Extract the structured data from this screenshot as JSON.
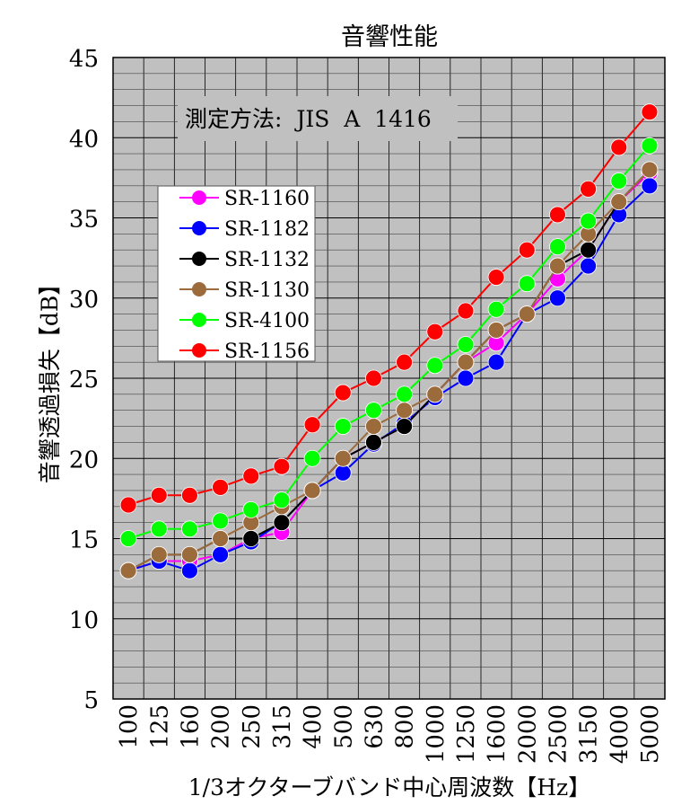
{
  "chart_data": {
    "type": "line",
    "title": "音響性能",
    "xlabel": "1/3オクターブバンド中心周波数【Hz】",
    "ylabel": "音響透過損失【dB】",
    "annotation": "測定方法:  JIS  A  1416",
    "categories": [
      "100",
      "125",
      "160",
      "200",
      "250",
      "315",
      "400",
      "500",
      "630",
      "800",
      "1000",
      "1250",
      "1600",
      "2000",
      "2500",
      "3150",
      "4000",
      "5000"
    ],
    "yticks": [
      "5",
      "10",
      "15",
      "20",
      "25",
      "30",
      "35",
      "40",
      "45"
    ],
    "ylim": [
      5,
      45
    ],
    "grid": true,
    "legend_position": "upper-left",
    "series": [
      {
        "name": "SR-1160",
        "color": "#ff00ff",
        "values": [
          13,
          13.6,
          13.6,
          14,
          15,
          15.4,
          18,
          20,
          21,
          22,
          24,
          26,
          27.2,
          29,
          31.2,
          33,
          36,
          37.8
        ]
      },
      {
        "name": "SR-1182",
        "color": "#0000ff",
        "values": [
          13,
          13.6,
          13,
          14,
          14.8,
          16,
          18,
          19.1,
          20.9,
          22.2,
          23.8,
          25,
          26,
          29,
          30,
          32,
          35.2,
          37
        ]
      },
      {
        "name": "SR-1132",
        "color": "#000000",
        "values": [
          13,
          14,
          14,
          15,
          15,
          16,
          18,
          20,
          21,
          22,
          24,
          26,
          28,
          29,
          32,
          33,
          36,
          38
        ]
      },
      {
        "name": "SR-1130",
        "color": "#9c6b3c",
        "values": [
          13,
          14,
          14,
          15,
          16,
          17,
          18,
          20,
          22,
          23,
          24,
          26,
          28,
          29,
          32,
          34,
          36,
          38
        ]
      },
      {
        "name": "SR-4100",
        "color": "#00ff00",
        "values": [
          15,
          15.6,
          15.6,
          16.1,
          16.8,
          17.4,
          20,
          22,
          23,
          24,
          25.8,
          27.1,
          29.3,
          30.9,
          33.2,
          34.8,
          37.3,
          39.5
        ]
      },
      {
        "name": "SR-1156",
        "color": "#ff0000",
        "values": [
          17.1,
          17.7,
          17.7,
          18.2,
          18.9,
          19.5,
          22.1,
          24.1,
          25,
          26,
          27.9,
          29.2,
          31.3,
          33,
          35.2,
          36.8,
          39.4,
          41.6
        ]
      }
    ]
  }
}
